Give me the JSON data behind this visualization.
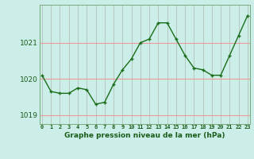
{
  "x": [
    0,
    1,
    2,
    3,
    4,
    5,
    6,
    7,
    8,
    9,
    10,
    11,
    12,
    13,
    14,
    15,
    16,
    17,
    18,
    19,
    20,
    21,
    22,
    23
  ],
  "y": [
    1020.1,
    1019.65,
    1019.6,
    1019.6,
    1019.75,
    1019.7,
    1019.3,
    1019.35,
    1019.85,
    1020.25,
    1020.55,
    1021.0,
    1021.1,
    1021.55,
    1021.55,
    1021.1,
    1020.65,
    1020.3,
    1020.25,
    1020.1,
    1020.1,
    1020.65,
    1021.2,
    1021.75
  ],
  "line_color": "#1a6e1a",
  "marker_color": "#1a6e1a",
  "background_color": "#cceee8",
  "vgrid_color": "#b0b8b0",
  "hgrid_color": "#ee9999",
  "ylabel_ticks": [
    1019,
    1020,
    1021
  ],
  "xlabel_label": "Graphe pression niveau de la mer (hPa)",
  "ylim": [
    1018.75,
    1022.05
  ],
  "xlim": [
    -0.3,
    23.3
  ]
}
